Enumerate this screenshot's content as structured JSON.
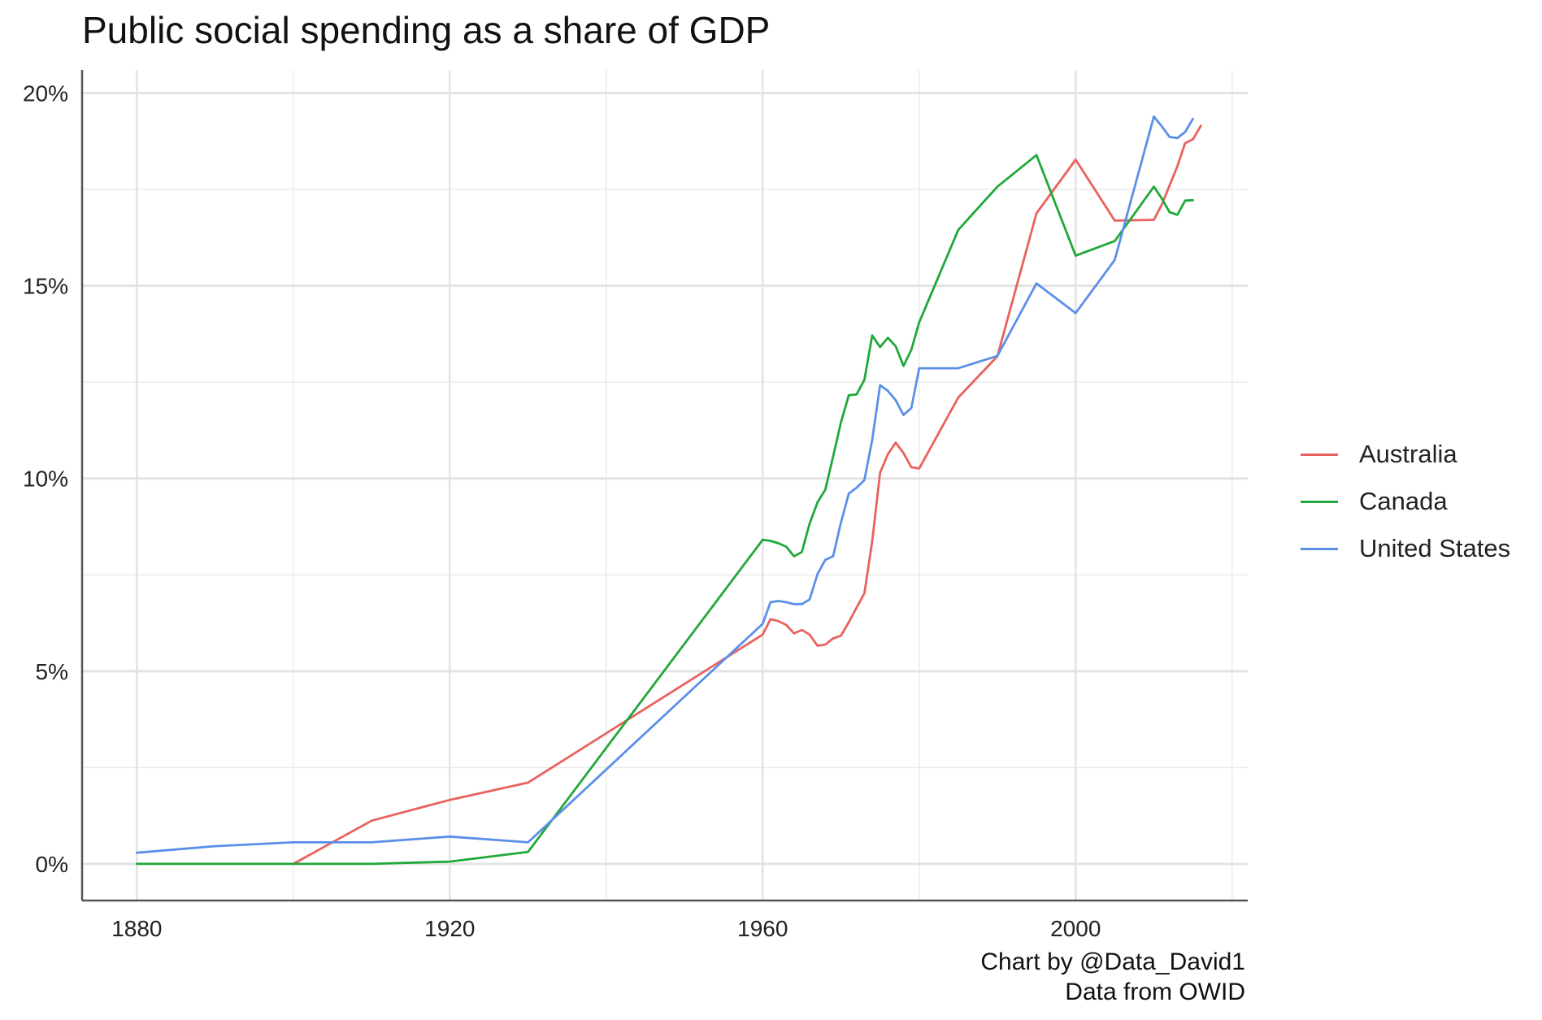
{
  "chart_data": {
    "type": "line",
    "title": "Public social spending as a share of GDP",
    "xlabel": "",
    "ylabel": "",
    "xlim": [
      1873,
      2022
    ],
    "ylim": [
      -0.95,
      20.6
    ],
    "x_ticks": [
      1880,
      1920,
      1960,
      2000
    ],
    "x_tick_labels": [
      "1880",
      "1920",
      "1960",
      "2000"
    ],
    "y_ticks": [
      0,
      5,
      10,
      15,
      20
    ],
    "y_tick_labels": [
      "0%",
      "5%",
      "10%",
      "15%",
      "20%"
    ],
    "y_minor_ticks": [
      2.5,
      7.5,
      12.5,
      17.5
    ],
    "x_minor_ticks": [
      1900,
      1940,
      1980,
      2020
    ],
    "grid": true,
    "legend_position": "right",
    "series": [
      {
        "name": "Australia",
        "color": "#E8625E",
        "x": [
          1900,
          1910,
          1920,
          1930,
          1960,
          1961,
          1962,
          1963,
          1964,
          1965,
          1966,
          1967,
          1968,
          1969,
          1970,
          1971,
          1972,
          1973,
          1974,
          1975,
          1976,
          1977,
          1978,
          1979,
          1980,
          1985,
          1990,
          1995,
          2000,
          2005,
          2010,
          2011,
          2012,
          2013,
          2014,
          2015,
          2016
        ],
        "y": [
          0.0,
          1.12,
          1.66,
          2.11,
          5.95,
          6.35,
          6.3,
          6.2,
          5.98,
          6.07,
          5.95,
          5.66,
          5.69,
          5.85,
          5.92,
          6.27,
          6.65,
          7.02,
          8.37,
          10.15,
          10.63,
          10.93,
          10.66,
          10.29,
          10.26,
          12.1,
          13.17,
          16.88,
          18.27,
          16.69,
          16.71,
          17.1,
          17.6,
          18.1,
          18.7,
          18.8,
          19.15
        ]
      },
      {
        "name": "Canada",
        "color": "#21A83A",
        "x": [
          1880,
          1890,
          1900,
          1910,
          1920,
          1930,
          1960,
          1961,
          1962,
          1963,
          1964,
          1965,
          1966,
          1967,
          1968,
          1969,
          1970,
          1971,
          1972,
          1973,
          1974,
          1975,
          1976,
          1977,
          1978,
          1979,
          1980,
          1985,
          1990,
          1995,
          2000,
          2005,
          2010,
          2011,
          2012,
          2013,
          2014,
          2015
        ],
        "y": [
          0.0,
          0.0,
          0.0,
          0.0,
          0.06,
          0.31,
          8.41,
          8.38,
          8.32,
          8.23,
          7.98,
          8.09,
          8.83,
          9.38,
          9.71,
          10.57,
          11.45,
          12.16,
          12.18,
          12.56,
          13.71,
          13.41,
          13.65,
          13.43,
          12.92,
          13.34,
          14.05,
          16.45,
          17.57,
          18.39,
          15.78,
          16.16,
          17.57,
          17.27,
          16.91,
          16.84,
          17.21,
          17.22
        ]
      },
      {
        "name": "United States",
        "color": "#5B8FE8",
        "x": [
          1880,
          1890,
          1900,
          1910,
          1920,
          1930,
          1960,
          1961,
          1962,
          1963,
          1964,
          1965,
          1966,
          1967,
          1968,
          1969,
          1970,
          1971,
          1972,
          1973,
          1974,
          1975,
          1976,
          1977,
          1978,
          1979,
          1980,
          1985,
          1990,
          1995,
          2000,
          2005,
          2010,
          2011,
          2012,
          2013,
          2014,
          2015
        ],
        "y": [
          0.29,
          0.46,
          0.56,
          0.56,
          0.71,
          0.56,
          6.23,
          6.79,
          6.82,
          6.79,
          6.74,
          6.74,
          6.86,
          7.52,
          7.89,
          7.98,
          8.85,
          9.61,
          9.76,
          9.96,
          11.0,
          12.42,
          12.27,
          12.03,
          11.65,
          11.83,
          12.86,
          12.86,
          13.18,
          15.06,
          14.29,
          15.67,
          19.39,
          19.14,
          18.86,
          18.83,
          18.99,
          19.33
        ]
      }
    ]
  },
  "caption": {
    "line1": "Chart by @Data_David1",
    "line2": "Data from OWID"
  }
}
